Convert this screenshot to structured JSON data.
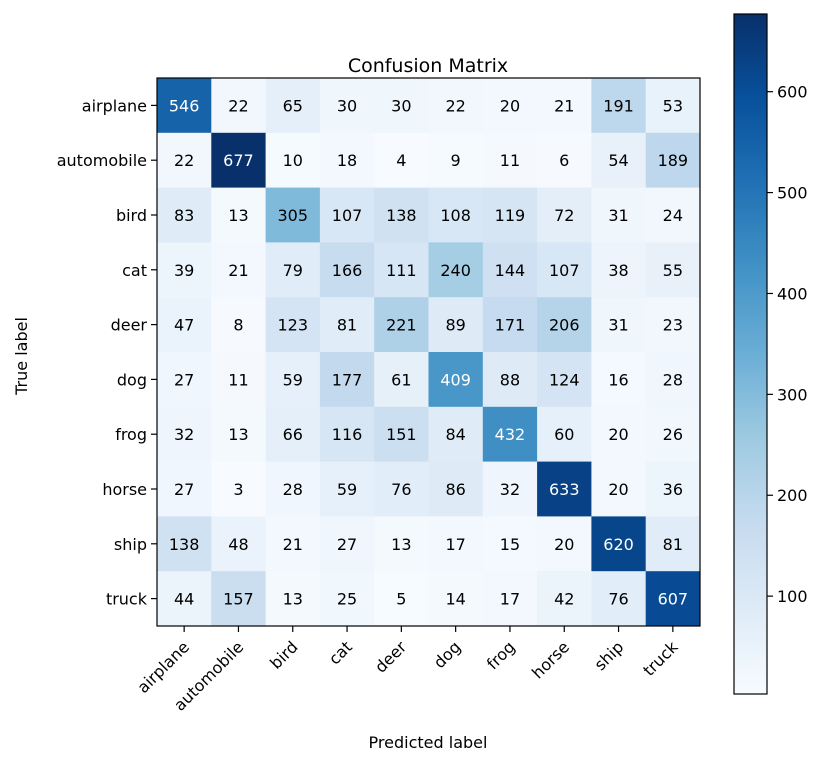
{
  "chart_data": {
    "type": "heatmap",
    "title": "Confusion Matrix",
    "xlabel": "Predicted label",
    "ylabel": "True label",
    "x_categories": [
      "airplane",
      "automobile",
      "bird",
      "cat",
      "deer",
      "dog",
      "frog",
      "horse",
      "ship",
      "truck"
    ],
    "y_categories": [
      "airplane",
      "automobile",
      "bird",
      "cat",
      "deer",
      "dog",
      "frog",
      "horse",
      "ship",
      "truck"
    ],
    "values": [
      [
        546,
        22,
        65,
        30,
        30,
        22,
        20,
        21,
        191,
        53
      ],
      [
        22,
        677,
        10,
        18,
        4,
        9,
        11,
        6,
        54,
        189
      ],
      [
        83,
        13,
        305,
        107,
        138,
        108,
        119,
        72,
        31,
        24
      ],
      [
        39,
        21,
        79,
        166,
        111,
        240,
        144,
        107,
        38,
        55
      ],
      [
        47,
        8,
        123,
        81,
        221,
        89,
        171,
        206,
        31,
        23
      ],
      [
        27,
        11,
        59,
        177,
        61,
        409,
        88,
        124,
        16,
        28
      ],
      [
        32,
        13,
        66,
        116,
        151,
        84,
        432,
        60,
        20,
        26
      ],
      [
        27,
        3,
        28,
        59,
        76,
        86,
        32,
        633,
        20,
        36
      ],
      [
        138,
        48,
        21,
        27,
        13,
        17,
        15,
        20,
        620,
        81
      ],
      [
        44,
        157,
        13,
        25,
        5,
        14,
        17,
        42,
        76,
        607
      ]
    ],
    "colormap": "Blues",
    "color_range": [
      3,
      677
    ],
    "colorbar_ticks": [
      100,
      200,
      300,
      400,
      500,
      600
    ],
    "text_color_light": "#ffffff",
    "text_color_dark": "#000000"
  }
}
